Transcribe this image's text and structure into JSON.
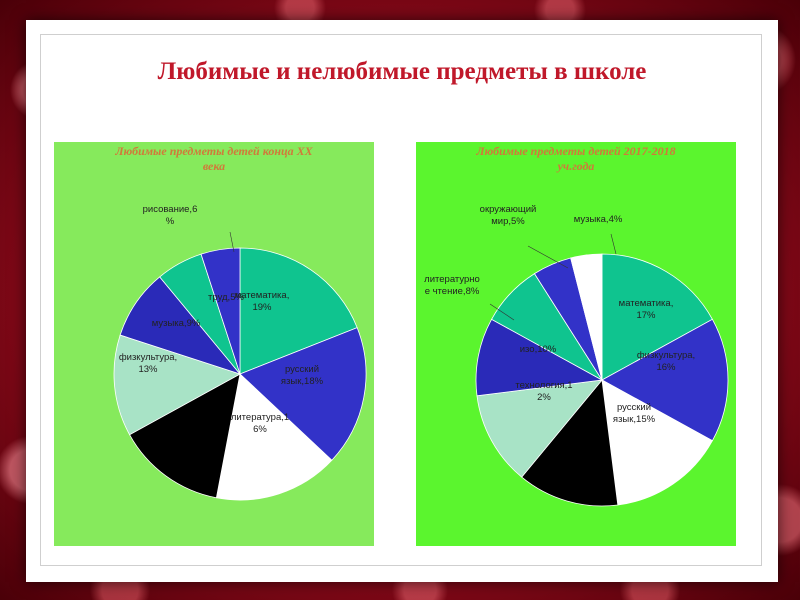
{
  "page": {
    "title": "Любимые и нелюбимые предметы в школе"
  },
  "colors": {
    "title": "#c0182a",
    "chart_title": "#d07a3a",
    "panel_left": "#86ea5c",
    "panel_right": "#5bf52e"
  },
  "chart_data": [
    {
      "type": "pie",
      "title": "Любимые предметы детей конца XX века",
      "title_lines": [
        "Любимые предметы детей конца XX",
        "века"
      ],
      "slices": [
        {
          "name": "математика",
          "value": 19,
          "label_lines": [
            "математика,",
            "19%"
          ],
          "color": "#0fc48f"
        },
        {
          "name": "русский язык",
          "value": 18,
          "label_lines": [
            "русский",
            "язык,18%"
          ],
          "color": "#3232c8"
        },
        {
          "name": "литература",
          "value": 16,
          "label_lines": [
            "литература,1",
            "6%"
          ],
          "color": "#ffffff"
        },
        {
          "name": "",
          "value": 14,
          "label_lines": [],
          "color": "#000000"
        },
        {
          "name": "физкультура",
          "value": 13,
          "label_lines": [
            "физкультура,",
            "13%"
          ],
          "color": "#a8e3c6"
        },
        {
          "name": "музыка",
          "value": 9,
          "label_lines": [
            "музыка,9%"
          ],
          "color": "#2a2ab8"
        },
        {
          "name": "рисование",
          "value": 6,
          "label_lines": [
            "рисование,6",
            "%"
          ],
          "color": "#0fc48f"
        },
        {
          "name": "труд",
          "value": 5,
          "label_lines": [
            "труд,5%"
          ],
          "color": "#3232c8"
        }
      ]
    },
    {
      "type": "pie",
      "title": "Любимые предметы детей 2017-2018 уч.года",
      "title_lines": [
        "Любимые предметы детей 2017-2018",
        "уч.года"
      ],
      "slices": [
        {
          "name": "математика",
          "value": 17,
          "label_lines": [
            "математика,",
            "17%"
          ],
          "color": "#0fc48f"
        },
        {
          "name": "физкультура",
          "value": 16,
          "label_lines": [
            "физкультура,",
            "16%"
          ],
          "color": "#3232c8"
        },
        {
          "name": "русский язык",
          "value": 15,
          "label_lines": [
            "русский",
            "язык,15%"
          ],
          "color": "#ffffff"
        },
        {
          "name": "",
          "value": 13,
          "label_lines": [],
          "color": "#000000"
        },
        {
          "name": "технология",
          "value": 12,
          "label_lines": [
            "технология,1",
            "2%"
          ],
          "color": "#a8e3c6"
        },
        {
          "name": "изо",
          "value": 10,
          "label_lines": [
            "изо,10%"
          ],
          "color": "#2a2ab8"
        },
        {
          "name": "литературное чтение",
          "value": 8,
          "label_lines": [
            "литературно",
            "е чтение,8%"
          ],
          "color": "#0fc48f"
        },
        {
          "name": "окружающий мир",
          "value": 5,
          "label_lines": [
            "окружающий",
            "мир,5%"
          ],
          "color": "#3232c8"
        },
        {
          "name": "музыка",
          "value": 4,
          "label_lines": [
            "музыка,4%"
          ],
          "color": "#ffffff"
        }
      ]
    }
  ]
}
